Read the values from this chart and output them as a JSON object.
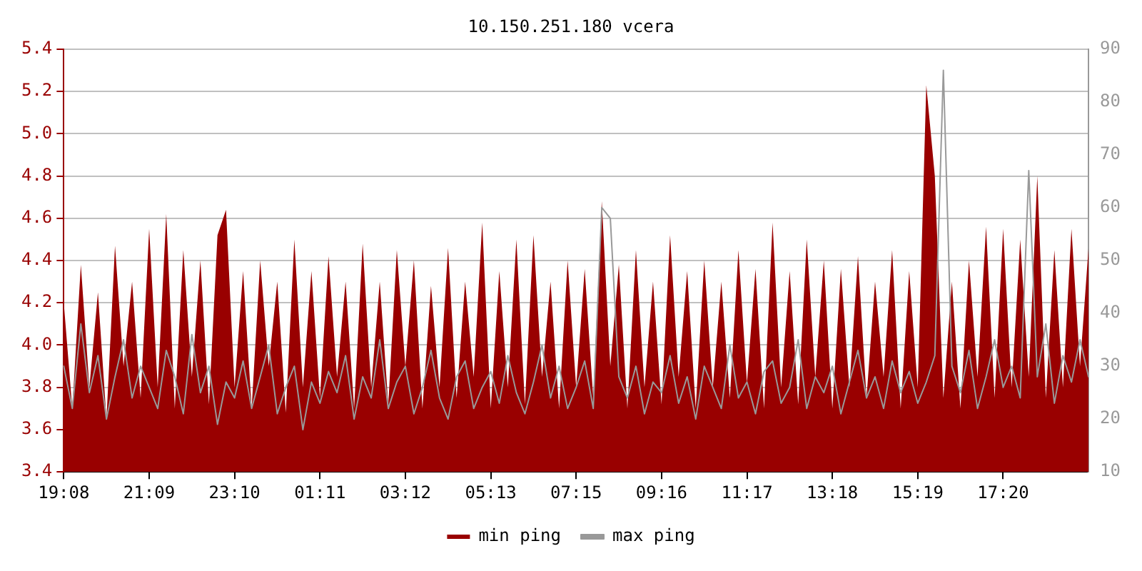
{
  "chart_data": {
    "type": "line",
    "title": "10.150.251.180 vcera",
    "categories": [
      "19:08",
      null,
      null,
      null,
      null,
      null,
      null,
      null,
      null,
      null,
      "21:09",
      null,
      null,
      null,
      null,
      null,
      null,
      null,
      null,
      null,
      "23:10",
      null,
      null,
      null,
      null,
      null,
      null,
      null,
      null,
      null,
      "01:11",
      null,
      null,
      null,
      null,
      null,
      null,
      null,
      null,
      null,
      "03:12",
      null,
      null,
      null,
      null,
      null,
      null,
      null,
      null,
      null,
      "05:13",
      null,
      null,
      null,
      null,
      null,
      null,
      null,
      null,
      null,
      "07:15",
      null,
      null,
      null,
      null,
      null,
      null,
      null,
      null,
      null,
      "09:16",
      null,
      null,
      null,
      null,
      null,
      null,
      null,
      null,
      null,
      "11:17",
      null,
      null,
      null,
      null,
      null,
      null,
      null,
      null,
      null,
      "13:18",
      null,
      null,
      null,
      null,
      null,
      null,
      null,
      null,
      null,
      "15:19",
      null,
      null,
      null,
      null,
      null,
      null,
      null,
      null,
      null,
      "17:20",
      null,
      null,
      null,
      null,
      null,
      null,
      null,
      null,
      null,
      null
    ],
    "series": [
      {
        "name": "min ping",
        "type": "area",
        "color": "#990000",
        "values": [
          4.2,
          3.7,
          4.38,
          3.8,
          4.25,
          3.65,
          4.47,
          3.9,
          4.3,
          3.75,
          4.55,
          3.8,
          4.62,
          3.7,
          4.45,
          3.85,
          4.4,
          3.72,
          4.52,
          4.64,
          3.8,
          4.35,
          3.7,
          4.4,
          3.9,
          4.3,
          3.68,
          4.5,
          3.8,
          4.35,
          3.75,
          4.42,
          3.85,
          4.3,
          3.7,
          4.48,
          3.8,
          4.3,
          3.72,
          4.45,
          3.9,
          4.4,
          3.7,
          4.28,
          3.8,
          4.46,
          3.75,
          4.3,
          3.85,
          4.58,
          3.7,
          4.35,
          3.8,
          4.5,
          3.72,
          4.52,
          3.85,
          4.3,
          3.7,
          4.4,
          3.8,
          4.36,
          3.75,
          4.68,
          3.9,
          4.38,
          3.7,
          4.45,
          3.8,
          4.3,
          3.72,
          4.52,
          3.85,
          4.35,
          3.7,
          4.4,
          3.8,
          4.3,
          3.75,
          4.45,
          3.82,
          4.36,
          3.7,
          4.58,
          3.8,
          4.35,
          3.72,
          4.5,
          3.85,
          4.4,
          3.7,
          4.36,
          3.8,
          4.42,
          3.75,
          4.3,
          3.85,
          4.45,
          3.7,
          4.35,
          3.8,
          5.23,
          4.8,
          3.75,
          4.3,
          3.7,
          4.4,
          3.85,
          4.56,
          3.75,
          4.55,
          3.8,
          4.5,
          3.85,
          4.8,
          3.75,
          4.45,
          3.8,
          4.55,
          3.9,
          4.46
        ]
      },
      {
        "name": "max ping",
        "type": "line",
        "axis": "y2",
        "color": "#999999",
        "values": [
          30,
          22,
          38,
          25,
          32,
          20,
          28,
          35,
          24,
          30,
          26,
          22,
          33,
          28,
          21,
          36,
          25,
          30,
          19,
          27,
          24,
          31,
          22,
          28,
          34,
          21,
          26,
          30,
          18,
          27,
          23,
          29,
          25,
          32,
          20,
          28,
          24,
          35,
          22,
          27,
          30,
          21,
          26,
          33,
          24,
          20,
          28,
          31,
          22,
          26,
          29,
          23,
          32,
          25,
          21,
          27,
          34,
          24,
          30,
          22,
          26,
          31,
          22,
          60,
          58,
          28,
          24,
          30,
          21,
          27,
          25,
          32,
          23,
          28,
          20,
          30,
          26,
          22,
          34,
          24,
          27,
          21,
          29,
          31,
          23,
          26,
          35,
          22,
          28,
          25,
          30,
          21,
          27,
          33,
          24,
          28,
          22,
          31,
          25,
          29,
          23,
          27,
          32,
          86,
          30,
          25,
          33,
          22,
          28,
          35,
          26,
          30,
          24,
          67,
          28,
          38,
          23,
          32,
          27,
          35,
          28
        ]
      }
    ],
    "ylim": [
      3.4,
      5.4
    ],
    "yticks": [
      {
        "value": 3.4,
        "label": "3.4"
      },
      {
        "value": 3.6,
        "label": "3.6"
      },
      {
        "value": 3.8,
        "label": "3.8"
      },
      {
        "value": 4.0,
        "label": "4.0"
      },
      {
        "value": 4.2,
        "label": "4.2"
      },
      {
        "value": 4.4,
        "label": "4.4"
      },
      {
        "value": 4.6,
        "label": "4.6"
      },
      {
        "value": 4.8,
        "label": "4.8"
      },
      {
        "value": 5.0,
        "label": "5.0"
      },
      {
        "value": 5.2,
        "label": "5.2"
      },
      {
        "value": 5.4,
        "label": "5.4"
      }
    ],
    "y2lim": [
      10,
      90
    ],
    "y2ticks": [
      10,
      20,
      30,
      40,
      50,
      60,
      70,
      80,
      90
    ],
    "grid": "y",
    "legend": "bottom"
  }
}
